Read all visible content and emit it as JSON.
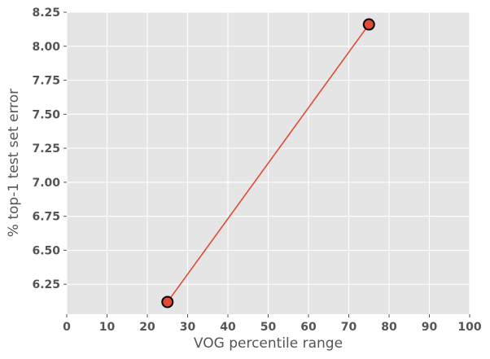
{
  "chart_data": {
    "type": "line",
    "title": "",
    "xlabel": "VOG percentile range",
    "ylabel": "% top-1 test set error",
    "xlim": [
      0,
      100
    ],
    "ylim": [
      6.03,
      8.25
    ],
    "x_ticks": [
      0,
      10,
      20,
      30,
      40,
      50,
      60,
      70,
      80,
      90,
      100
    ],
    "y_ticks": [
      6.25,
      6.5,
      6.75,
      7.0,
      7.25,
      7.5,
      7.75,
      8.0,
      8.25
    ],
    "x_tick_labels": [
      "0",
      "10",
      "20",
      "30",
      "40",
      "50",
      "60",
      "70",
      "80",
      "90",
      "100"
    ],
    "y_tick_labels": [
      "6.25",
      "6.50",
      "6.75",
      "7.00",
      "7.25",
      "7.50",
      "7.75",
      "8.00",
      "8.25"
    ],
    "grid": true,
    "series": [
      {
        "x": [
          25,
          75
        ],
        "y": [
          6.12,
          8.16
        ],
        "color": "#E24A33",
        "marker": "circle",
        "marker_edge_color": "#000000"
      }
    ],
    "background_color": "#E5E5E5"
  }
}
